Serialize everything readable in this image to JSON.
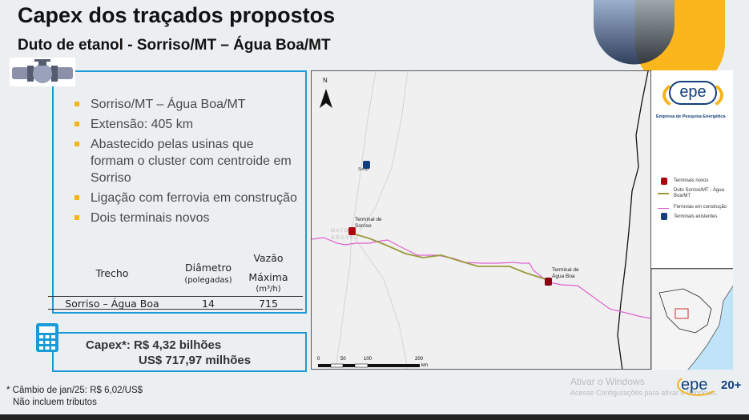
{
  "slide": {
    "title": "Capex dos traçados propostos",
    "subtitle": "Duto de etanol - Sorriso/MT – Água Boa/MT"
  },
  "bullets": [
    "Sorriso/MT – Água Boa/MT",
    "Extensão: 405 km",
    "Abastecido pelas usinas que formam o cluster com centroide em Sorriso",
    "Ligação com ferrovia em construção",
    "Dois terminais novos"
  ],
  "table": {
    "headers": {
      "trecho": "Trecho",
      "diametro": "Diâmetro",
      "diametro_unit": "(polegadas)",
      "vazao": "Vazão",
      "vazao2": "Máxima",
      "vazao_unit": "(m³/h)"
    },
    "rows": [
      {
        "trecho": "Sorriso – Água Boa",
        "diametro": "14",
        "vazao": "715"
      }
    ]
  },
  "capex": {
    "line1": "Capex*: R$ 4,32 bilhões",
    "line2": "US$ 717,97 milhões"
  },
  "footnotes": [
    "* Câmbio de jan/25: R$ 6,02/US$",
    "Não incluem tributos"
  ],
  "map": {
    "north": "N",
    "labels": {
      "sinop": "Sinop",
      "sorriso": "Terminal de Sorriso",
      "agua_boa": "Terminal de Água Boa",
      "state": "MATO GROSSO"
    },
    "scale": {
      "ticks": [
        "0",
        "50",
        "100",
        "200"
      ],
      "unit": "km"
    },
    "legend": {
      "org": "Empresa de Pesquisa Energética",
      "logo": "epe",
      "items": [
        "Terminais novos",
        "Duto Sorriso/MT - Água Boa/MT",
        "Ferrovias em construção",
        "Terminais existentes"
      ]
    },
    "colors": {
      "pipeline": "#9a9a3c",
      "railway": "#e060d0",
      "new_terminal": "#b00010",
      "existing_terminal": "#123f7a"
    }
  },
  "watermark": {
    "line1": "Ativar o Windows",
    "line2": "Acesse Configurações para ativar o Windows."
  },
  "brand": {
    "logo": "epe",
    "suffix": "20+",
    "accent": "#f5b21b",
    "blue": "#1a9bd7"
  }
}
